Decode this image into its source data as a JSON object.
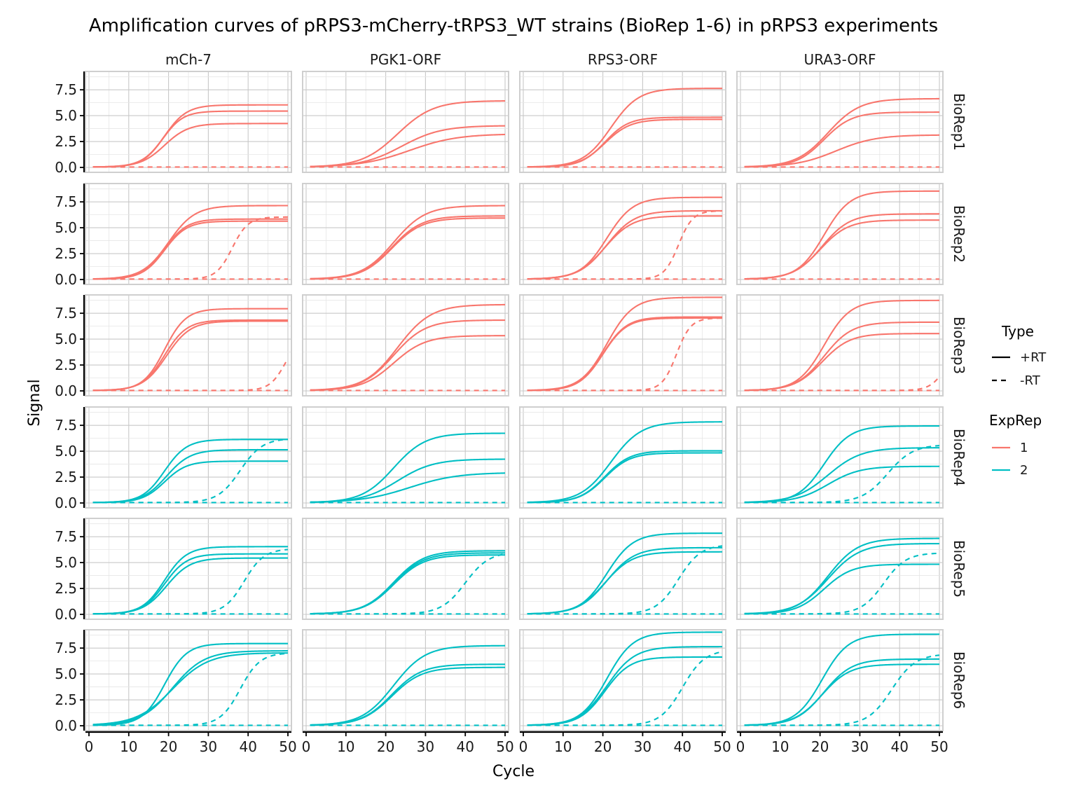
{
  "chart_data": {
    "type": "line",
    "title": "Amplification curves of pRPS3-mCherry-tRPS3_WT strains (BioRep 1-6) in pRPS3 experiments",
    "xlabel": "Cycle",
    "ylabel": "Signal",
    "xlim": [
      0,
      50
    ],
    "ylim": [
      0,
      9
    ],
    "x_ticks": [
      "0",
      "10",
      "20",
      "30",
      "40",
      "50"
    ],
    "y_ticks": [
      "0.0",
      "2.5",
      "5.0",
      "7.5"
    ],
    "grid": true,
    "columns": [
      "mCh-7",
      "PGK1-ORF",
      "RPS3-ORF",
      "URA3-ORF"
    ],
    "rows": [
      "BioRep1",
      "BioRep2",
      "BioRep3",
      "BioRep4",
      "BioRep5",
      "BioRep6"
    ],
    "row_exprep": [
      "1",
      "1",
      "1",
      "2",
      "2",
      "2"
    ],
    "legend": {
      "position": "right",
      "type_title": "Type",
      "type_items": [
        {
          "label": "+RT",
          "dash": "solid"
        },
        {
          "label": "-RT",
          "dash": "dashed"
        }
      ],
      "exprep_title": "ExpRep",
      "exprep_items": [
        {
          "label": "1",
          "color": "#F8766D"
        },
        {
          "label": "2",
          "color": "#00BFC4"
        }
      ]
    },
    "curve_model": "sigmoid: signal = plateau / (1 + exp(-(cycle - midpoint) / slope)); -RT curves with no plateau stay at 0",
    "panels": [
      {
        "row": "BioRep1",
        "col": "mCh-7",
        "plus_rt": [
          {
            "plateau": 6.0,
            "midpoint": 19.0,
            "slope": 2.8
          },
          {
            "plateau": 5.4,
            "midpoint": 18.5,
            "slope": 2.6
          },
          {
            "plateau": 4.2,
            "midpoint": 19.0,
            "slope": 3.0
          }
        ],
        "minus_rt": [
          {
            "plateau": 0,
            "midpoint": 0,
            "slope": 1
          }
        ]
      },
      {
        "row": "BioRep1",
        "col": "PGK1-ORF",
        "plus_rt": [
          {
            "plateau": 6.4,
            "midpoint": 23.0,
            "slope": 4.5
          },
          {
            "plateau": 4.0,
            "midpoint": 24.0,
            "slope": 5.0
          },
          {
            "plateau": 3.2,
            "midpoint": 26.0,
            "slope": 6.0
          }
        ],
        "minus_rt": [
          {
            "plateau": 0,
            "midpoint": 0,
            "slope": 1
          }
        ]
      },
      {
        "row": "BioRep1",
        "col": "RPS3-ORF",
        "plus_rt": [
          {
            "plateau": 7.6,
            "midpoint": 22.0,
            "slope": 3.5
          },
          {
            "plateau": 4.8,
            "midpoint": 20.5,
            "slope": 3.0
          },
          {
            "plateau": 4.6,
            "midpoint": 20.5,
            "slope": 3.2
          }
        ],
        "minus_rt": [
          {
            "plateau": 0,
            "midpoint": 0,
            "slope": 1
          }
        ]
      },
      {
        "row": "BioRep1",
        "col": "URA3-ORF",
        "plus_rt": [
          {
            "plateau": 6.6,
            "midpoint": 22.0,
            "slope": 4.0
          },
          {
            "plateau": 5.3,
            "midpoint": 21.0,
            "slope": 3.5
          },
          {
            "plateau": 3.1,
            "midpoint": 24.0,
            "slope": 5.0
          }
        ],
        "minus_rt": [
          {
            "plateau": 0,
            "midpoint": 0,
            "slope": 1
          }
        ]
      },
      {
        "row": "BioRep2",
        "col": "mCh-7",
        "plus_rt": [
          {
            "plateau": 7.1,
            "midpoint": 20.0,
            "slope": 3.3
          },
          {
            "plateau": 5.8,
            "midpoint": 19.0,
            "slope": 2.8
          },
          {
            "plateau": 5.6,
            "midpoint": 19.0,
            "slope": 2.8
          }
        ],
        "minus_rt": [
          {
            "plateau": 6.0,
            "midpoint": 36.0,
            "slope": 2.0
          },
          {
            "plateau": 0,
            "midpoint": 0,
            "slope": 1
          }
        ]
      },
      {
        "row": "BioRep2",
        "col": "PGK1-ORF",
        "plus_rt": [
          {
            "plateau": 7.1,
            "midpoint": 22.0,
            "slope": 4.0
          },
          {
            "plateau": 6.1,
            "midpoint": 21.5,
            "slope": 3.8
          },
          {
            "plateau": 5.9,
            "midpoint": 21.5,
            "slope": 3.8
          }
        ],
        "minus_rt": [
          {
            "plateau": 0,
            "midpoint": 0,
            "slope": 1
          }
        ]
      },
      {
        "row": "BioRep2",
        "col": "RPS3-ORF",
        "plus_rt": [
          {
            "plateau": 7.9,
            "midpoint": 21.0,
            "slope": 3.3
          },
          {
            "plateau": 6.6,
            "midpoint": 21.0,
            "slope": 3.5
          },
          {
            "plateau": 6.1,
            "midpoint": 20.5,
            "slope": 3.5
          }
        ],
        "minus_rt": [
          {
            "plateau": 6.6,
            "midpoint": 39.0,
            "slope": 1.8
          },
          {
            "plateau": 0,
            "midpoint": 0,
            "slope": 1
          }
        ]
      },
      {
        "row": "BioRep2",
        "col": "URA3-ORF",
        "plus_rt": [
          {
            "plateau": 8.5,
            "midpoint": 21.0,
            "slope": 3.3
          },
          {
            "plateau": 6.3,
            "midpoint": 20.5,
            "slope": 3.5
          },
          {
            "plateau": 5.7,
            "midpoint": 20.0,
            "slope": 3.5
          }
        ],
        "minus_rt": [
          {
            "plateau": 0,
            "midpoint": 0,
            "slope": 1
          }
        ]
      },
      {
        "row": "BioRep3",
        "col": "mCh-7",
        "plus_rt": [
          {
            "plateau": 7.9,
            "midpoint": 19.0,
            "slope": 2.7
          },
          {
            "plateau": 6.8,
            "midpoint": 19.0,
            "slope": 2.8
          },
          {
            "plateau": 6.7,
            "midpoint": 19.5,
            "slope": 3.0
          }
        ],
        "minus_rt": [
          {
            "plateau": 5.5,
            "midpoint": 49.5,
            "slope": 2.0
          },
          {
            "plateau": 0,
            "midpoint": 0,
            "slope": 1
          }
        ]
      },
      {
        "row": "BioRep3",
        "col": "PGK1-ORF",
        "plus_rt": [
          {
            "plateau": 8.3,
            "midpoint": 23.0,
            "slope": 4.2
          },
          {
            "plateau": 6.8,
            "midpoint": 22.0,
            "slope": 4.0
          },
          {
            "plateau": 5.3,
            "midpoint": 22.0,
            "slope": 4.0
          }
        ],
        "minus_rt": [
          {
            "plateau": 0,
            "midpoint": 0,
            "slope": 1
          }
        ]
      },
      {
        "row": "BioRep3",
        "col": "RPS3-ORF",
        "plus_rt": [
          {
            "plateau": 9.0,
            "midpoint": 21.0,
            "slope": 3.3
          },
          {
            "plateau": 7.1,
            "midpoint": 20.0,
            "slope": 3.0
          },
          {
            "plateau": 7.0,
            "midpoint": 20.0,
            "slope": 3.0
          }
        ],
        "minus_rt": [
          {
            "plateau": 7.0,
            "midpoint": 38.5,
            "slope": 1.8
          },
          {
            "plateau": 0,
            "midpoint": 0,
            "slope": 1
          }
        ]
      },
      {
        "row": "BioRep3",
        "col": "URA3-ORF",
        "plus_rt": [
          {
            "plateau": 8.7,
            "midpoint": 21.0,
            "slope": 3.3
          },
          {
            "plateau": 6.6,
            "midpoint": 21.0,
            "slope": 3.5
          },
          {
            "plateau": 5.5,
            "midpoint": 20.5,
            "slope": 3.5
          }
        ],
        "minus_rt": [
          {
            "plateau": 5.0,
            "midpoint": 52.0,
            "slope": 2.0
          },
          {
            "plateau": 0,
            "midpoint": 0,
            "slope": 1
          }
        ]
      },
      {
        "row": "BioRep4",
        "col": "mCh-7",
        "plus_rt": [
          {
            "plateau": 6.1,
            "midpoint": 19.0,
            "slope": 2.8
          },
          {
            "plateau": 5.1,
            "midpoint": 19.5,
            "slope": 3.0
          },
          {
            "plateau": 4.0,
            "midpoint": 19.0,
            "slope": 2.8
          }
        ],
        "minus_rt": [
          {
            "plateau": 6.2,
            "midpoint": 38.0,
            "slope": 2.8
          },
          {
            "plateau": 0,
            "midpoint": 0,
            "slope": 1
          }
        ]
      },
      {
        "row": "BioRep4",
        "col": "PGK1-ORF",
        "plus_rt": [
          {
            "plateau": 6.7,
            "midpoint": 22.0,
            "slope": 4.0
          },
          {
            "plateau": 4.2,
            "midpoint": 23.0,
            "slope": 4.5
          },
          {
            "plateau": 2.9,
            "midpoint": 26.0,
            "slope": 6.0
          }
        ],
        "minus_rt": [
          {
            "plateau": 0,
            "midpoint": 0,
            "slope": 1
          }
        ]
      },
      {
        "row": "BioRep4",
        "col": "RPS3-ORF",
        "plus_rt": [
          {
            "plateau": 7.8,
            "midpoint": 22.0,
            "slope": 3.8
          },
          {
            "plateau": 5.0,
            "midpoint": 20.5,
            "slope": 3.2
          },
          {
            "plateau": 4.8,
            "midpoint": 20.5,
            "slope": 3.2
          }
        ],
        "minus_rt": [
          {
            "plateau": 0,
            "midpoint": 0,
            "slope": 1
          }
        ]
      },
      {
        "row": "BioRep4",
        "col": "URA3-ORF",
        "plus_rt": [
          {
            "plateau": 7.4,
            "midpoint": 21.0,
            "slope": 3.3
          },
          {
            "plateau": 5.3,
            "midpoint": 22.0,
            "slope": 4.2
          },
          {
            "plateau": 3.5,
            "midpoint": 22.0,
            "slope": 4.0
          }
        ],
        "minus_rt": [
          {
            "plateau": 5.6,
            "midpoint": 37.0,
            "slope": 3.2
          },
          {
            "plateau": 0,
            "midpoint": 0,
            "slope": 1
          }
        ]
      },
      {
        "row": "BioRep5",
        "col": "mCh-7",
        "plus_rt": [
          {
            "plateau": 6.5,
            "midpoint": 19.0,
            "slope": 2.8
          },
          {
            "plateau": 5.8,
            "midpoint": 19.0,
            "slope": 2.8
          },
          {
            "plateau": 5.4,
            "midpoint": 19.5,
            "slope": 3.0
          }
        ],
        "minus_rt": [
          {
            "plateau": 6.3,
            "midpoint": 39.0,
            "slope": 2.5
          },
          {
            "plateau": 0,
            "midpoint": 0,
            "slope": 1
          }
        ]
      },
      {
        "row": "BioRep5",
        "col": "PGK1-ORF",
        "plus_rt": [
          {
            "plateau": 6.1,
            "midpoint": 22.0,
            "slope": 3.8
          },
          {
            "plateau": 5.9,
            "midpoint": 22.0,
            "slope": 3.8
          },
          {
            "plateau": 5.7,
            "midpoint": 22.0,
            "slope": 3.8
          }
        ],
        "minus_rt": [
          {
            "plateau": 6.0,
            "midpoint": 40.0,
            "slope": 3.0
          },
          {
            "plateau": 0,
            "midpoint": 0,
            "slope": 1
          }
        ]
      },
      {
        "row": "BioRep5",
        "col": "RPS3-ORF",
        "plus_rt": [
          {
            "plateau": 7.8,
            "midpoint": 21.0,
            "slope": 3.3
          },
          {
            "plateau": 6.4,
            "midpoint": 21.0,
            "slope": 3.5
          },
          {
            "plateau": 6.0,
            "midpoint": 20.5,
            "slope": 3.5
          }
        ],
        "minus_rt": [
          {
            "plateau": 6.7,
            "midpoint": 39.0,
            "slope": 2.8
          },
          {
            "plateau": 0,
            "midpoint": 0,
            "slope": 1
          }
        ]
      },
      {
        "row": "BioRep5",
        "col": "URA3-ORF",
        "plus_rt": [
          {
            "plateau": 7.3,
            "midpoint": 22.0,
            "slope": 3.8
          },
          {
            "plateau": 6.8,
            "midpoint": 22.0,
            "slope": 4.0
          },
          {
            "plateau": 4.8,
            "midpoint": 21.0,
            "slope": 3.5
          }
        ],
        "minus_rt": [
          {
            "plateau": 5.9,
            "midpoint": 36.0,
            "slope": 2.8
          },
          {
            "plateau": 0,
            "midpoint": 0,
            "slope": 1
          }
        ]
      },
      {
        "row": "BioRep6",
        "col": "mCh-7",
        "plus_rt": [
          {
            "plateau": 7.9,
            "midpoint": 19.0,
            "slope": 2.8
          },
          {
            "plateau": 7.2,
            "midpoint": 21.0,
            "slope": 4.0
          },
          {
            "plateau": 7.0,
            "midpoint": 21.0,
            "slope": 4.5
          }
        ],
        "minus_rt": [
          {
            "plateau": 7.0,
            "midpoint": 38.0,
            "slope": 2.5
          },
          {
            "plateau": 0,
            "midpoint": 0,
            "slope": 1
          }
        ]
      },
      {
        "row": "BioRep6",
        "col": "PGK1-ORF",
        "plus_rt": [
          {
            "plateau": 7.7,
            "midpoint": 22.0,
            "slope": 4.0
          },
          {
            "plateau": 5.9,
            "midpoint": 21.5,
            "slope": 3.8
          },
          {
            "plateau": 5.6,
            "midpoint": 21.5,
            "slope": 3.8
          }
        ],
        "minus_rt": [
          {
            "plateau": 0,
            "midpoint": 0,
            "slope": 1
          }
        ]
      },
      {
        "row": "BioRep6",
        "col": "RPS3-ORF",
        "plus_rt": [
          {
            "plateau": 9.0,
            "midpoint": 21.0,
            "slope": 3.3
          },
          {
            "plateau": 7.6,
            "midpoint": 21.0,
            "slope": 3.5
          },
          {
            "plateau": 6.6,
            "midpoint": 20.5,
            "slope": 3.2
          }
        ],
        "minus_rt": [
          {
            "plateau": 7.3,
            "midpoint": 40.0,
            "slope": 2.8
          },
          {
            "plateau": 0,
            "midpoint": 0,
            "slope": 1
          }
        ]
      },
      {
        "row": "BioRep6",
        "col": "URA3-ORF",
        "plus_rt": [
          {
            "plateau": 8.8,
            "midpoint": 20.5,
            "slope": 3.3
          },
          {
            "plateau": 6.4,
            "midpoint": 21.0,
            "slope": 3.5
          },
          {
            "plateau": 5.9,
            "midpoint": 20.5,
            "slope": 3.5
          }
        ],
        "minus_rt": [
          {
            "plateau": 6.9,
            "midpoint": 38.0,
            "slope": 3.0
          },
          {
            "plateau": 0,
            "midpoint": 0,
            "slope": 1
          }
        ]
      }
    ]
  }
}
